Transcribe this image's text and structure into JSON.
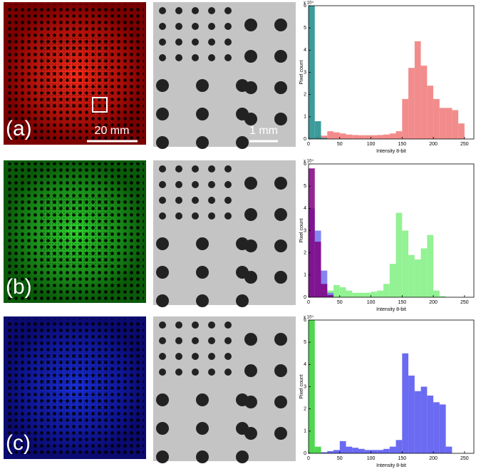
{
  "panel_labels": [
    "(a)",
    "(b)",
    "(c)"
  ],
  "scale_bars": [
    "20 mm",
    "1 mm"
  ],
  "chart_data": [
    {
      "type": "histogram",
      "ylabel": "Pixel count",
      "xlabel": "Intensity 8-bit",
      "y_multiplier": "x 10⁴",
      "bins": [
        0,
        10,
        20,
        30,
        40,
        50,
        60,
        70,
        80,
        90,
        100,
        110,
        120,
        130,
        140,
        150,
        160,
        170,
        180,
        190,
        200,
        210,
        220,
        230,
        240,
        250,
        260
      ],
      "xlim": [
        0,
        265
      ],
      "ylim": [
        0,
        6
      ],
      "xticks": [
        0,
        50,
        100,
        150,
        200,
        250
      ],
      "yticks": [
        0,
        1,
        2,
        3,
        4,
        5,
        6
      ],
      "series": [
        {
          "color": "#f07878",
          "values": [
            0.05,
            0.1,
            0.15,
            0.35,
            0.3,
            0.25,
            0.2,
            0.18,
            0.17,
            0.17,
            0.17,
            0.18,
            0.2,
            0.25,
            0.35,
            1.8,
            3.2,
            4.4,
            3.3,
            2.4,
            1.8,
            1.4,
            1.4,
            1.3,
            0.7,
            0
          ]
        },
        {
          "color": "#1a8a8a",
          "values": [
            6,
            0.8,
            0.05,
            0,
            0,
            0,
            0,
            0,
            0,
            0,
            0,
            0,
            0,
            0,
            0,
            0,
            0,
            0,
            0,
            0,
            0,
            0,
            0,
            0,
            0,
            0
          ]
        }
      ]
    },
    {
      "type": "histogram",
      "ylabel": "Pixel count",
      "xlabel": "Intensity 8-bit",
      "y_multiplier": "x 10⁴",
      "bins": [
        0,
        10,
        20,
        30,
        40,
        50,
        60,
        70,
        80,
        90,
        100,
        110,
        120,
        130,
        140,
        150,
        160,
        170,
        180,
        190,
        200,
        210,
        220,
        230,
        240,
        250,
        260
      ],
      "xlim": [
        0,
        265
      ],
      "ylim": [
        0,
        6
      ],
      "xticks": [
        0,
        50,
        100,
        150,
        200,
        250
      ],
      "yticks": [
        0,
        1,
        2,
        3,
        4,
        5,
        6
      ],
      "series": [
        {
          "color": "#80f080",
          "values": [
            0,
            0.1,
            0.2,
            0.3,
            0.55,
            0.45,
            0.3,
            0.2,
            0.2,
            0.2,
            0.25,
            0.3,
            0.6,
            1.5,
            3.8,
            3.0,
            1.9,
            1.7,
            2.2,
            2.8,
            0.3,
            0.05,
            0,
            0,
            0,
            0
          ]
        },
        {
          "color": "#7070f0",
          "values": [
            4,
            3,
            1.2,
            0.2,
            0,
            0,
            0,
            0,
            0,
            0,
            0,
            0,
            0,
            0,
            0,
            0,
            0,
            0,
            0,
            0,
            0,
            0,
            0,
            0,
            0,
            0
          ]
        },
        {
          "color": "#800080",
          "values": [
            5.8,
            2.5,
            0.6,
            0.1,
            0,
            0,
            0,
            0,
            0,
            0,
            0,
            0,
            0,
            0,
            0,
            0,
            0,
            0,
            0,
            0,
            0,
            0,
            0,
            0,
            0,
            0
          ]
        }
      ]
    },
    {
      "type": "histogram",
      "ylabel": "Pixel count",
      "xlabel": "Intensity 8-bit",
      "y_multiplier": "x 10⁴",
      "bins": [
        0,
        10,
        20,
        30,
        40,
        50,
        60,
        70,
        80,
        90,
        100,
        110,
        120,
        130,
        140,
        150,
        160,
        170,
        180,
        190,
        200,
        210,
        220,
        230,
        240,
        250,
        260
      ],
      "xlim": [
        0,
        265
      ],
      "ylim": [
        0,
        6
      ],
      "xticks": [
        0,
        50,
        100,
        150,
        200,
        250
      ],
      "yticks": [
        0,
        1,
        2,
        3,
        4,
        5,
        6
      ],
      "series": [
        {
          "color": "#5050f0",
          "values": [
            0,
            0,
            0.05,
            0.1,
            0.15,
            0.55,
            0.3,
            0.25,
            0.2,
            0.15,
            0.15,
            0.15,
            0.2,
            0.3,
            0.6,
            4.5,
            3.5,
            2.8,
            3.0,
            2.6,
            2.3,
            2.2,
            0.3,
            0,
            0,
            0
          ]
        },
        {
          "color": "#30d030",
          "values": [
            6,
            0.3,
            0,
            0,
            0,
            0,
            0,
            0,
            0,
            0,
            0,
            0,
            0,
            0,
            0,
            0,
            0,
            0,
            0,
            0,
            0,
            0,
            0,
            0,
            0,
            0
          ]
        }
      ]
    }
  ]
}
